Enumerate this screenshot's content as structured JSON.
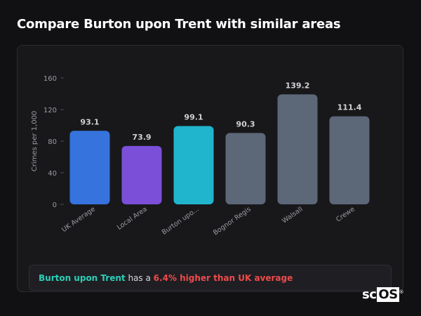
{
  "title": "Compare Burton upon Trent with similar areas",
  "summary": {
    "place": "Burton upon Trent",
    "middle": "has a",
    "difference": "6.4% higher than UK average"
  },
  "logo": {
    "text": "sc",
    "highlight": "OS",
    "mark": "®"
  },
  "colors": {
    "uk_average": "#3673dd",
    "local_area": "#7b4fd8",
    "burton": "#21b5cd",
    "others": "#5c6778",
    "axis_text": "#9a9aa2",
    "value_text": "#d2d2d6"
  },
  "chart_data": {
    "type": "bar",
    "title": "",
    "ylabel": "Crimes per 1,000",
    "xlabel": "",
    "ylim": [
      0,
      160
    ],
    "yticks": [
      0,
      40,
      80,
      120,
      160
    ],
    "categories": [
      "UK Average",
      "Local Area",
      "Burton upo...",
      "Bognor Regis",
      "Walsall",
      "Crewe"
    ],
    "values": [
      93.1,
      73.9,
      99.1,
      90.3,
      139.2,
      111.4
    ],
    "value_labels": [
      "93.1",
      "73.9",
      "99.1",
      "90.3",
      "139.2",
      "111.4"
    ],
    "bar_colors": [
      "#3673dd",
      "#7b4fd8",
      "#21b5cd",
      "#5c6778",
      "#5c6778",
      "#5c6778"
    ],
    "grid": false,
    "legend": "none"
  }
}
